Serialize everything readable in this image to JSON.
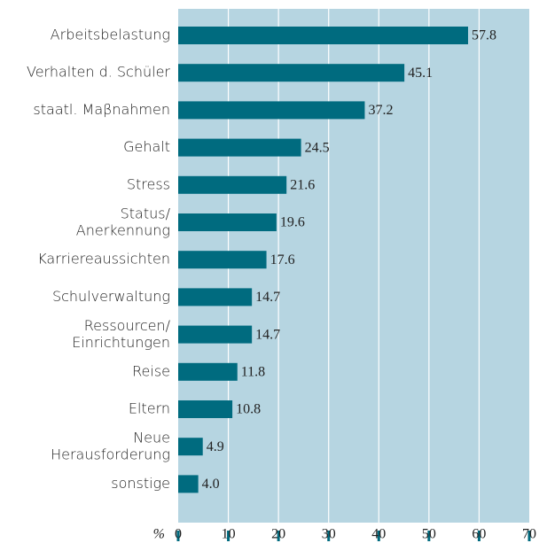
{
  "chart_data": {
    "type": "bar",
    "orientation": "horizontal",
    "categories": [
      "Arbeitsbelastung",
      "Verhalten d. Schüler",
      "staatl. Maβnahmen",
      "Gehalt",
      "Stress",
      "Status/\nAnerkennung",
      "Karriereaussichten",
      "Schulverwaltung",
      "Ressourcen/\nEinrichtungen",
      "Reise",
      "Eltern",
      "Neue\nHerausforderung",
      "sonstige"
    ],
    "values": [
      57.8,
      45.1,
      37.2,
      24.5,
      21.6,
      19.6,
      17.6,
      14.7,
      14.7,
      11.8,
      10.8,
      4.9,
      4.0
    ],
    "value_labels": [
      "57.8",
      "45.1",
      "37.2",
      "24.5",
      "21.6",
      "19.6",
      "17.6",
      "14.7",
      "14.7",
      "11.8",
      "10.8",
      "4.9",
      "4.0"
    ],
    "color": "#006b7f",
    "background": "#b6d5e1",
    "x_label": "%",
    "xlim": [
      0,
      70
    ],
    "xticks": [
      0,
      10,
      20,
      30,
      40,
      50,
      60,
      70
    ],
    "grid": true
  }
}
